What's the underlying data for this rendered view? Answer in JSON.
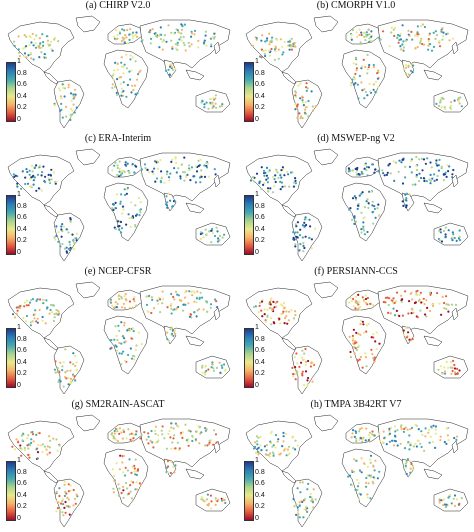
{
  "colorbar": {
    "ticks": [
      "1",
      "0.8",
      "0.6",
      "0.4",
      "0.2",
      "0"
    ],
    "colors": [
      "#1f3c8c",
      "#2a7fb8",
      "#45a8b0",
      "#a9d38f",
      "#e9e98a",
      "#f6b46a",
      "#e55d3e",
      "#9e0b2a"
    ]
  },
  "panels": [
    {
      "title": "(a) CHIRP V2.0",
      "level": 0.55
    },
    {
      "title": "(b) CMORPH V1.0",
      "level": 0.5
    },
    {
      "title": "(c) ERA-Interim",
      "level": 0.72
    },
    {
      "title": "(d) MSWEP-ng V2",
      "level": 0.78
    },
    {
      "title": "(e) NCEP-CFSR",
      "level": 0.5
    },
    {
      "title": "(f) PERSIANN-CCS",
      "level": 0.3
    },
    {
      "title": "(g) SM2RAIN-ASCAT",
      "level": 0.4
    },
    {
      "title": "(h) TMPA 3B42RT V7",
      "level": 0.55
    }
  ]
}
